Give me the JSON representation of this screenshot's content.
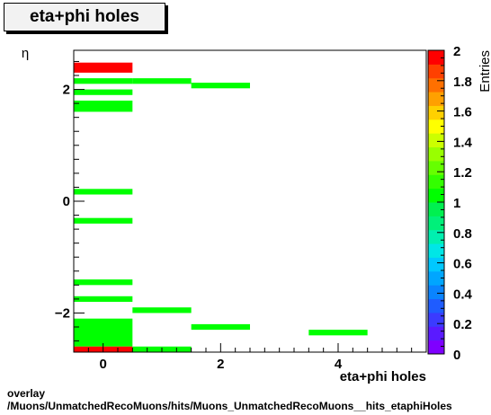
{
  "title": "eta+phi holes",
  "footer": {
    "line1": "overlay",
    "line2": "/Muons/UnmatchedRecoMuons/hits/Muons_UnmatchedRecoMuons__hits_etaphiHoles"
  },
  "chart_data": {
    "type": "heatmap",
    "title": "eta+phi holes",
    "xlabel": "eta+phi holes",
    "ylabel": "η",
    "zlabel": "Entries",
    "xlim": [
      -0.5,
      5.5
    ],
    "ylim": [
      -2.7,
      2.7
    ],
    "zlim": [
      0,
      2
    ],
    "x_ticks": [
      "0",
      "2",
      "4"
    ],
    "y_ticks": [
      "−2",
      "0",
      "2"
    ],
    "z_ticks": [
      "0",
      "0.2",
      "0.4",
      "0.6",
      "0.8",
      "1",
      "1.2",
      "1.4",
      "1.6",
      "1.8",
      "2"
    ],
    "cells": [
      {
        "x": 0,
        "y0": 2.3,
        "y1": 2.48,
        "value": 2
      },
      {
        "x": 0,
        "y0": 2.1,
        "y1": 2.2,
        "value": 1
      },
      {
        "x": 1,
        "y0": 2.1,
        "y1": 2.2,
        "value": 1
      },
      {
        "x": 2,
        "y0": 2.02,
        "y1": 2.12,
        "value": 1
      },
      {
        "x": 0,
        "y0": 1.9,
        "y1": 2.0,
        "value": 1
      },
      {
        "x": 0,
        "y0": 1.6,
        "y1": 1.8,
        "value": 1
      },
      {
        "x": 0,
        "y0": 0.12,
        "y1": 0.22,
        "value": 1
      },
      {
        "x": 0,
        "y0": -0.4,
        "y1": -0.3,
        "value": 1
      },
      {
        "x": 0,
        "y0": -1.5,
        "y1": -1.4,
        "value": 1
      },
      {
        "x": 0,
        "y0": -1.8,
        "y1": -1.7,
        "value": 1
      },
      {
        "x": 1,
        "y0": -2.0,
        "y1": -1.9,
        "value": 1
      },
      {
        "x": 0,
        "y0": -2.6,
        "y1": -2.1,
        "value": 1
      },
      {
        "x": 2,
        "y0": -2.3,
        "y1": -2.2,
        "value": 1
      },
      {
        "x": 4,
        "y0": -2.4,
        "y1": -2.3,
        "value": 1
      },
      {
        "x": 1,
        "y0": -2.7,
        "y1": -2.6,
        "value": 1
      },
      {
        "x": 0,
        "y0": -2.7,
        "y1": -2.6,
        "value": 2
      }
    ],
    "palette": [
      "#7f00ff",
      "#5a1aff",
      "#3b3bff",
      "#1f5cff",
      "#0a84ff",
      "#00a6ff",
      "#00c8ff",
      "#00e6e6",
      "#00f0b0",
      "#00f07a",
      "#00f050",
      "#00ff00",
      "#33ff00",
      "#66ff00",
      "#99ff00",
      "#ccff00",
      "#ffff00",
      "#ffd000",
      "#ffa000",
      "#ff7000",
      "#ff4000",
      "#ff0000"
    ]
  }
}
